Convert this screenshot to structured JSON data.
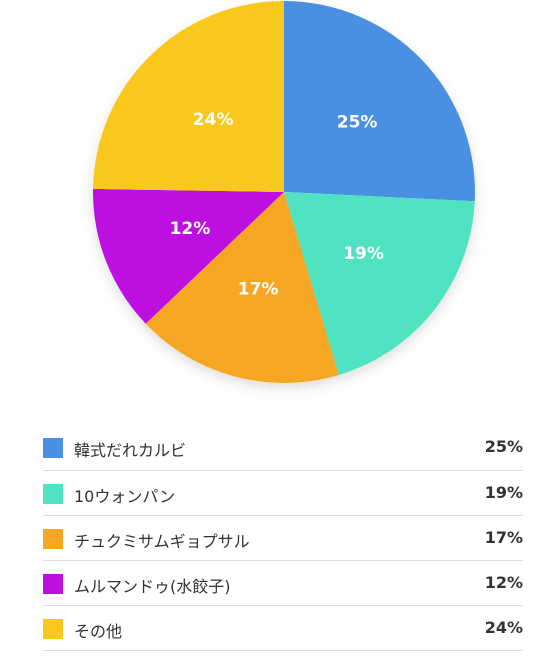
{
  "chart_data": {
    "type": "pie",
    "start_angle_deg": 0,
    "direction": "clockwise",
    "slices": [
      {
        "label": "韓式だれカルビ",
        "value": 25,
        "display": "25%",
        "color": "#4A90E2"
      },
      {
        "label": "10ウォンパン",
        "value": 19,
        "display": "19%",
        "color": "#50E3C2"
      },
      {
        "label": "チュクミサムギョプサル",
        "value": 17,
        "display": "17%",
        "color": "#F5A623"
      },
      {
        "label": "ムルマンドゥ(水餃子)",
        "value": 12,
        "display": "12%",
        "color": "#BD10E0"
      },
      {
        "label": "その他",
        "value": 24,
        "display": "24%",
        "color": "#F8C81C"
      }
    ]
  }
}
